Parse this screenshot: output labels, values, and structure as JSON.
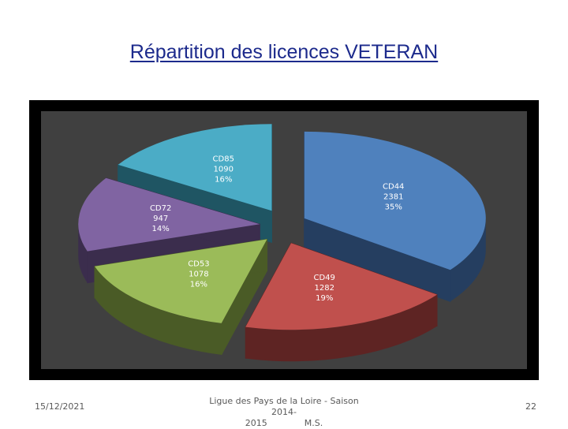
{
  "slide": {
    "title": "Répartition des licences VETERAN",
    "footer_date": "15/12/2021",
    "footer_line1": "Ligue des Pays de la Loire - Saison 2014-",
    "footer_line2a": "2015",
    "footer_line2b": "M.S.",
    "page_number": "22"
  },
  "chart_data": {
    "type": "pie",
    "exploded": true,
    "three_d": true,
    "background": "#000000",
    "plot_area_color": "#404040",
    "slices": [
      {
        "label": "CD44",
        "value": 2381,
        "percent": "35%",
        "color": "#4f81bd",
        "side_color": "#253e60"
      },
      {
        "label": "CD49",
        "value": 1282,
        "percent": "19%",
        "color": "#c0504d",
        "side_color": "#5e2423"
      },
      {
        "label": "CD53",
        "value": 1078,
        "percent": "16%",
        "color": "#9bbb59",
        "side_color": "#4a5b26"
      },
      {
        "label": "CD72",
        "value": 947,
        "percent": "14%",
        "color": "#8064a2",
        "side_color": "#3b2d4d"
      },
      {
        "label": "CD85",
        "value": 1090,
        "percent": "16%",
        "color": "#4bacc6",
        "side_color": "#1f5563"
      }
    ]
  }
}
